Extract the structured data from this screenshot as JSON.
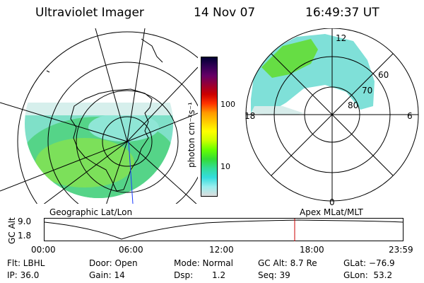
{
  "header": {
    "instrument": "Ultraviolet Imager",
    "date": "14 Nov 07",
    "time": "16:49:37 UT"
  },
  "colorbar": {
    "unit_label": "photon cm⁻²s⁻¹",
    "ticks": [
      "100",
      "10"
    ],
    "colors": [
      "#000033",
      "#330055",
      "#660066",
      "#990033",
      "#cc0000",
      "#ff3300",
      "#ff9900",
      "#ffcc00",
      "#ffff00",
      "#ccff00",
      "#66ff00",
      "#33dd33",
      "#33dd99",
      "#33dddd",
      "#99eeee",
      "#dddddd"
    ]
  },
  "left_panel": {
    "caption": "Geographic Lat/Lon"
  },
  "right_panel": {
    "caption": "Apex MLat/MLT",
    "mlt_labels": {
      "top": "12",
      "left": "18",
      "right": "6",
      "bottom": "0"
    },
    "lat_labels": [
      "60",
      "70",
      "80"
    ]
  },
  "timeline": {
    "y_axis_label": "GC Alt",
    "y_ticks": [
      "9.0",
      "1.8"
    ],
    "x_ticks": [
      "00:00",
      "06:00",
      "12:00",
      "18:00",
      "23:59"
    ],
    "marker_color": "#cc0000"
  },
  "footer": {
    "flt": "Flt: LBHL",
    "ip": "IP: 36.0",
    "door": "Door: Open",
    "gain": "Gain: 14",
    "mode": "Mode: Normal",
    "dsp_label": "Dsp:",
    "dsp_value": "1.2",
    "gc_alt": "GC Alt: 8.7 Re",
    "seq": "Seq: 39",
    "glat": "GLat: −76.9",
    "glon": "GLon:  53.2"
  }
}
